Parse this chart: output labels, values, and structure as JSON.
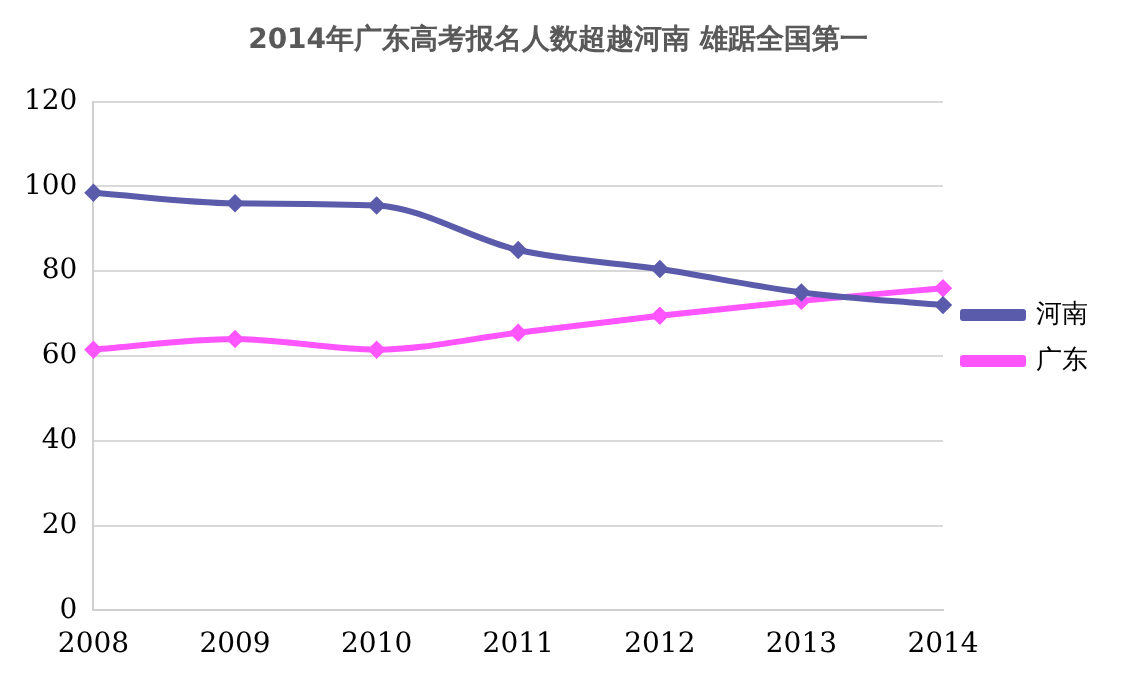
{
  "chart_data": {
    "type": "line",
    "title": "2014年广东高考报名人数超越河南 雄踞全国第一",
    "categories": [
      "2008",
      "2009",
      "2010",
      "2011",
      "2012",
      "2013",
      "2014"
    ],
    "series": [
      {
        "name": "河南",
        "color": "#5b5bab",
        "values": [
          98.5,
          96,
          95.5,
          85,
          80.5,
          75,
          72
        ]
      },
      {
        "name": "广东",
        "color": "#ff55ff",
        "values": [
          61.5,
          64,
          61.5,
          65.5,
          69.5,
          73,
          76
        ]
      }
    ],
    "ylim": [
      0,
      120
    ],
    "yticks": [
      0,
      20,
      40,
      60,
      80,
      100,
      120
    ],
    "grid": "y",
    "legend": "right",
    "marker": "diamond",
    "line_style": "solid"
  }
}
